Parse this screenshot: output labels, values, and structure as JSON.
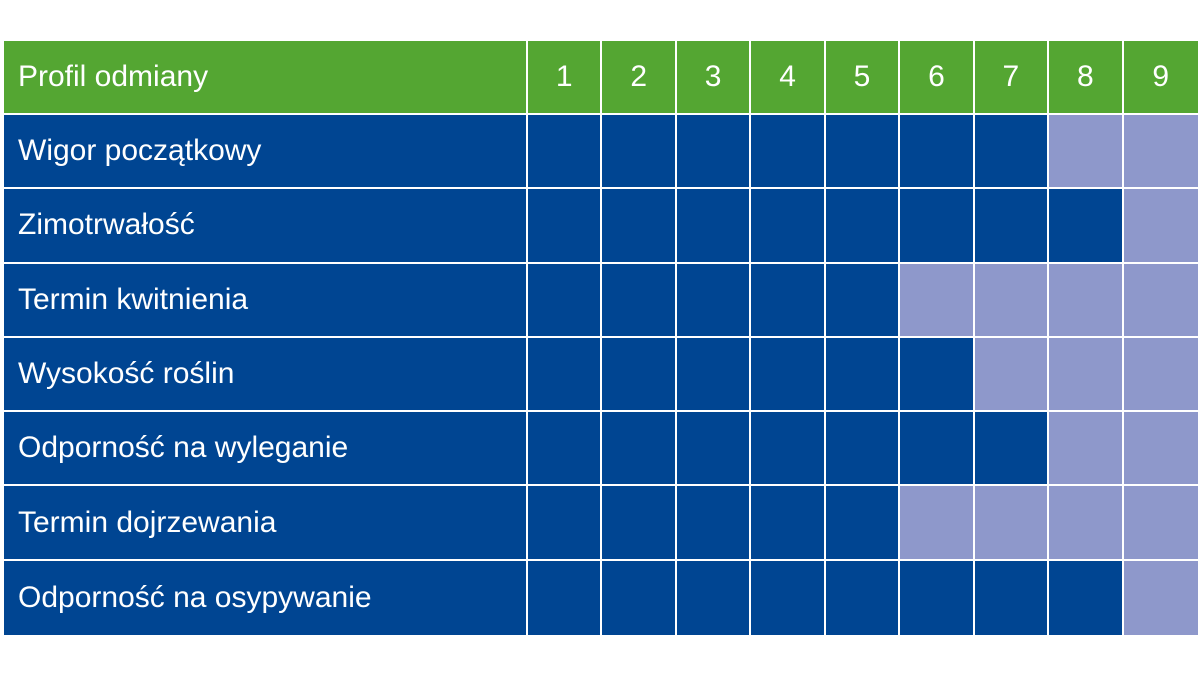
{
  "header": {
    "label": "Profil odmiany",
    "scale": [
      "1",
      "2",
      "3",
      "4",
      "5",
      "6",
      "7",
      "8",
      "9"
    ]
  },
  "chart_data": {
    "type": "table",
    "title": "",
    "xlabel": "",
    "ylabel": "",
    "scale_min": 1,
    "scale_max": 9,
    "columns": [
      "1",
      "2",
      "3",
      "4",
      "5",
      "6",
      "7",
      "8",
      "9"
    ],
    "rows": [
      {
        "label": "Wigor początkowy",
        "value": 7
      },
      {
        "label": "Zimotrwałość",
        "value": 8
      },
      {
        "label": "Termin kwitnienia",
        "value": 5
      },
      {
        "label": "Wysokość roślin",
        "value": 6
      },
      {
        "label": "Odporność na wyleganie",
        "value": 7
      },
      {
        "label": "Termin dojrzewania",
        "value": 5
      },
      {
        "label": "Odporność na osypywanie",
        "value": 8
      }
    ]
  },
  "colors": {
    "header_green": "#54a632",
    "filled_blue": "#004592",
    "empty_lavender": "#8e98cb",
    "background": "#ffffff"
  }
}
